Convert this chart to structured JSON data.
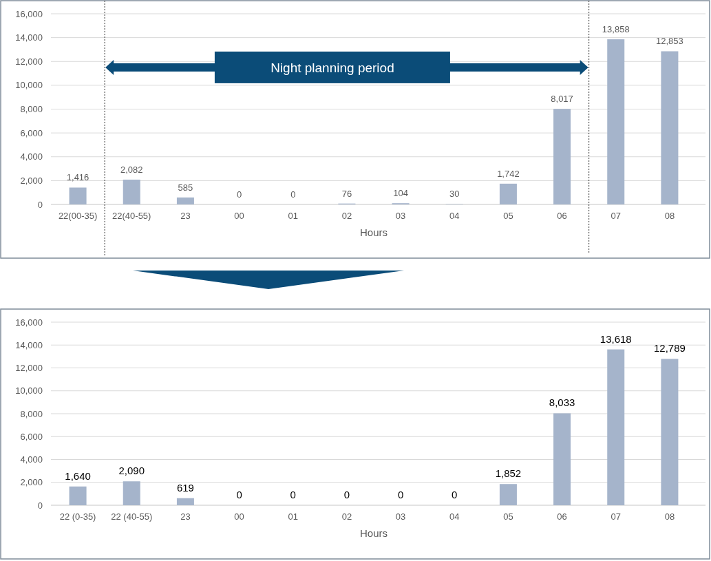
{
  "chart_data": [
    {
      "type": "bar",
      "xlabel": "Hours",
      "categories": [
        "22(00-35)",
        "22(40-55)",
        "23",
        "00",
        "01",
        "02",
        "03",
        "04",
        "05",
        "06",
        "07",
        "08"
      ],
      "values": [
        1416,
        2082,
        585,
        0,
        0,
        76,
        104,
        30,
        1742,
        8017,
        13858,
        12853
      ],
      "value_labels": [
        "1,416",
        "2,082",
        "585",
        "0",
        "0",
        "76",
        "104",
        "30",
        "1,742",
        "8,017",
        "13,858",
        "12,853"
      ],
      "color": "#a5b4cb",
      "ylim": [
        0,
        16000
      ],
      "yticks": [
        {
          "value": 0,
          "label": "0"
        },
        {
          "value": 2000,
          "label": "2,000"
        },
        {
          "value": 4000,
          "label": "4,000"
        },
        {
          "value": 6000,
          "label": "6,000"
        },
        {
          "value": 8000,
          "label": "8,000"
        },
        {
          "value": 10000,
          "label": "10,000"
        },
        {
          "value": 12000,
          "label": "12,000"
        },
        {
          "value": 14000,
          "label": "14,000"
        },
        {
          "value": 16000,
          "label": "16,000"
        }
      ],
      "grid": "y",
      "annotations": [
        "Night planning period"
      ]
    },
    {
      "type": "bar",
      "xlabel": "Hours",
      "categories": [
        "22 (0-35)",
        "22 (40-55)",
        "23",
        "00",
        "01",
        "02",
        "03",
        "04",
        "05",
        "06",
        "07",
        "08"
      ],
      "values": [
        1640,
        2090,
        619,
        0,
        0,
        0,
        0,
        0,
        1852,
        8033,
        13618,
        12789
      ],
      "value_labels": [
        "1,640",
        "2,090",
        "619",
        "0",
        "0",
        "0",
        "0",
        "0",
        "1,852",
        "8,033",
        "13,618",
        "12,789"
      ],
      "color": "#a5b4cb",
      "ylim": [
        0,
        16000
      ],
      "yticks": [
        {
          "value": 0,
          "label": "0"
        },
        {
          "value": 2000,
          "label": "2,000"
        },
        {
          "value": 4000,
          "label": "4,000"
        },
        {
          "value": 6000,
          "label": "6,000"
        },
        {
          "value": 8000,
          "label": "8,000"
        },
        {
          "value": 10000,
          "label": "10,000"
        },
        {
          "value": 12000,
          "label": "12,000"
        },
        {
          "value": 14000,
          "label": "14,000"
        },
        {
          "value": 16000,
          "label": "16,000"
        }
      ],
      "grid": "y"
    }
  ]
}
